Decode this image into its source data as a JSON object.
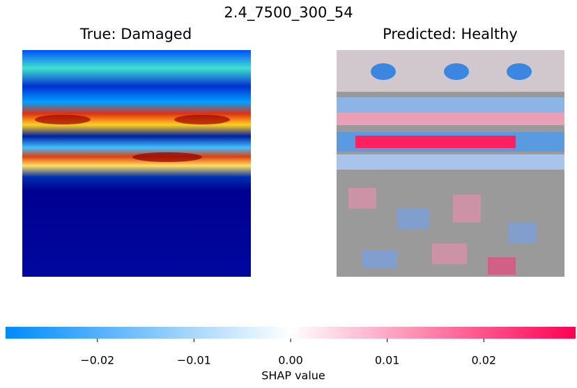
{
  "chart_data": {
    "type": "colorbar",
    "title": "2.4_7500_300_54",
    "panel_titles": [
      "True: Damaged",
      "Predicted: Healthy"
    ],
    "xlabel": "SHAP value",
    "xlim": [
      -0.0295,
      0.0295
    ],
    "xticks": [
      {
        "value": -0.02,
        "label": "−0.02"
      },
      {
        "value": -0.01,
        "label": "−0.01"
      },
      {
        "value": 0,
        "label": "0.00"
      },
      {
        "value": 0.01,
        "label": "0.01"
      },
      {
        "value": 0.02,
        "label": "0.02"
      }
    ],
    "colors": [
      "#008bfb",
      "#ffffff",
      "#ff0052"
    ]
  }
}
